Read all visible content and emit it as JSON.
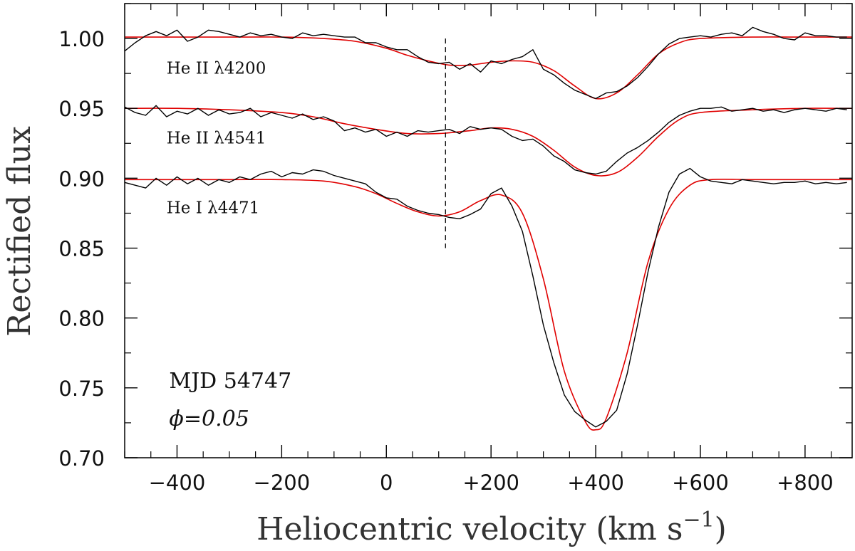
{
  "chart_data": {
    "type": "line",
    "xlabel": "Heliocentric velocity (km s",
    "xlabel_sup": "−1",
    "xlabel_close": ")",
    "ylabel": "Rectified flux",
    "xlim": [
      -500,
      890
    ],
    "ylim": [
      0.7,
      1.025
    ],
    "x_major_ticks": [
      -400,
      -200,
      0,
      200,
      400,
      600,
      800
    ],
    "x_tick_labels": [
      "−400",
      "−200",
      "0",
      "+200",
      "+400",
      "+600",
      "+800"
    ],
    "x_minor_step": 50,
    "y_major_ticks": [
      0.7,
      0.75,
      0.8,
      0.85,
      0.9,
      0.95,
      1.0
    ],
    "y_tick_labels": [
      "0.70",
      "0.75",
      "0.80",
      "0.85",
      "0.90",
      "0.95",
      "1.00"
    ],
    "y_minor_step": 0.025,
    "grid": false,
    "annotations": [
      {
        "text": "MJD 54747",
        "x": -415,
        "y": 0.755
      },
      {
        "text": "ϕ=0.05",
        "x": -415,
        "y": 0.728
      }
    ],
    "vline": {
      "x": 113,
      "y_from": 0.85,
      "y_to": 1.0,
      "style": "dashed"
    },
    "series": [
      {
        "label": "He II λ4200",
        "label_pos": {
          "x": -420,
          "y": 0.979
        },
        "observed_color": "#000000",
        "fit_color": "#e00000",
        "observed": {
          "x": [
            -500,
            -480,
            -460,
            -440,
            -420,
            -400,
            -380,
            -360,
            -340,
            -320,
            -300,
            -280,
            -260,
            -240,
            -220,
            -200,
            -180,
            -160,
            -140,
            -120,
            -100,
            -80,
            -60,
            -40,
            -20,
            0,
            20,
            40,
            60,
            80,
            100,
            120,
            140,
            160,
            180,
            200,
            220,
            240,
            260,
            280,
            300,
            320,
            340,
            360,
            380,
            400,
            420,
            440,
            460,
            480,
            500,
            520,
            540,
            560,
            580,
            600,
            620,
            640,
            660,
            680,
            700,
            720,
            740,
            760,
            780,
            800,
            820,
            840,
            860,
            880
          ],
          "y": [
            0.991,
            0.997,
            1.002,
            1.005,
            1.002,
            1.006,
            0.998,
            1.001,
            1.006,
            1.005,
            1.003,
            1.001,
            1.004,
            1.002,
            1.003,
            1.001,
            1.0,
            1.004,
            1.002,
            1.003,
            1.002,
            1.001,
            1.001,
            0.997,
            0.997,
            0.994,
            0.992,
            0.992,
            0.987,
            0.983,
            0.982,
            0.983,
            0.978,
            0.982,
            0.976,
            0.984,
            0.982,
            0.985,
            0.987,
            0.992,
            0.978,
            0.974,
            0.968,
            0.963,
            0.96,
            0.957,
            0.961,
            0.962,
            0.966,
            0.972,
            0.98,
            0.989,
            0.996,
            1.0,
            1.001,
            1.002,
            1.001,
            1.003,
            1.004,
            1.002,
            1.008,
            1.005,
            1.003,
            1.0,
            0.999,
            1.004,
            1.002,
            1.002,
            1.001,
            1.001
          ]
        },
        "fit": {
          "x": [
            -500,
            -400,
            -300,
            -200,
            -120,
            -60,
            0,
            40,
            80,
            120,
            160,
            200,
            240,
            280,
            320,
            360,
            400,
            440,
            480,
            520,
            560,
            600,
            700,
            800,
            890
          ],
          "y": [
            1.001,
            1.001,
            1.001,
            1.001,
            1.0,
            0.998,
            0.993,
            0.988,
            0.984,
            0.981,
            0.981,
            0.983,
            0.984,
            0.983,
            0.977,
            0.966,
            0.957,
            0.961,
            0.974,
            0.989,
            0.997,
            1.0,
            1.001,
            1.001,
            1.001
          ]
        }
      },
      {
        "label": "He II λ4541",
        "label_pos": {
          "x": -420,
          "y": 0.929
        },
        "observed_color": "#000000",
        "fit_color": "#e00000",
        "observed": {
          "x": [
            -500,
            -480,
            -460,
            -440,
            -420,
            -400,
            -380,
            -360,
            -340,
            -320,
            -300,
            -280,
            -260,
            -240,
            -220,
            -200,
            -180,
            -160,
            -140,
            -120,
            -100,
            -80,
            -60,
            -40,
            -20,
            0,
            20,
            40,
            60,
            80,
            100,
            120,
            140,
            160,
            180,
            200,
            220,
            240,
            260,
            280,
            300,
            320,
            340,
            360,
            380,
            400,
            420,
            440,
            460,
            480,
            500,
            520,
            540,
            560,
            580,
            600,
            620,
            640,
            660,
            680,
            700,
            720,
            740,
            760,
            780,
            800,
            820,
            840,
            860,
            880
          ],
          "y": [
            0.951,
            0.947,
            0.945,
            0.952,
            0.944,
            0.948,
            0.946,
            0.95,
            0.945,
            0.949,
            0.946,
            0.947,
            0.95,
            0.944,
            0.947,
            0.945,
            0.943,
            0.946,
            0.942,
            0.944,
            0.941,
            0.934,
            0.936,
            0.933,
            0.935,
            0.93,
            0.933,
            0.93,
            0.934,
            0.933,
            0.934,
            0.935,
            0.932,
            0.937,
            0.935,
            0.936,
            0.935,
            0.93,
            0.927,
            0.928,
            0.923,
            0.916,
            0.912,
            0.906,
            0.904,
            0.903,
            0.905,
            0.912,
            0.918,
            0.922,
            0.927,
            0.933,
            0.94,
            0.945,
            0.948,
            0.95,
            0.95,
            0.951,
            0.948,
            0.949,
            0.95,
            0.948,
            0.949,
            0.947,
            0.949,
            0.95,
            0.949,
            0.948,
            0.95,
            0.949
          ]
        },
        "fit": {
          "x": [
            -500,
            -400,
            -300,
            -200,
            -140,
            -80,
            -20,
            40,
            100,
            160,
            200,
            240,
            280,
            320,
            360,
            400,
            440,
            480,
            520,
            560,
            600,
            700,
            800,
            890
          ],
          "y": [
            0.95,
            0.95,
            0.949,
            0.947,
            0.944,
            0.939,
            0.935,
            0.932,
            0.932,
            0.934,
            0.936,
            0.935,
            0.93,
            0.92,
            0.908,
            0.902,
            0.904,
            0.915,
            0.93,
            0.942,
            0.947,
            0.949,
            0.95,
            0.95
          ]
        }
      },
      {
        "label": "He I λ4471",
        "label_pos": {
          "x": -420,
          "y": 0.879
        },
        "observed_color": "#000000",
        "fit_color": "#e00000",
        "observed": {
          "x": [
            -500,
            -480,
            -460,
            -440,
            -420,
            -400,
            -380,
            -360,
            -340,
            -320,
            -300,
            -280,
            -260,
            -240,
            -220,
            -200,
            -180,
            -160,
            -140,
            -120,
            -100,
            -80,
            -60,
            -40,
            -20,
            0,
            20,
            40,
            60,
            80,
            100,
            120,
            140,
            160,
            180,
            200,
            220,
            240,
            260,
            280,
            300,
            320,
            340,
            360,
            380,
            400,
            420,
            440,
            460,
            480,
            500,
            520,
            540,
            560,
            580,
            600,
            620,
            640,
            660,
            680,
            700,
            720,
            740,
            760,
            780,
            800,
            820,
            840,
            860,
            880
          ],
          "y": [
            0.897,
            0.895,
            0.893,
            0.9,
            0.895,
            0.901,
            0.896,
            0.9,
            0.895,
            0.899,
            0.897,
            0.901,
            0.899,
            0.903,
            0.905,
            0.901,
            0.904,
            0.903,
            0.906,
            0.905,
            0.902,
            0.9,
            0.898,
            0.896,
            0.89,
            0.886,
            0.885,
            0.88,
            0.877,
            0.875,
            0.874,
            0.872,
            0.871,
            0.874,
            0.878,
            0.889,
            0.893,
            0.88,
            0.862,
            0.83,
            0.795,
            0.768,
            0.745,
            0.733,
            0.727,
            0.722,
            0.726,
            0.734,
            0.76,
            0.795,
            0.833,
            0.865,
            0.89,
            0.903,
            0.907,
            0.901,
            0.898,
            0.897,
            0.896,
            0.899,
            0.898,
            0.897,
            0.896,
            0.897,
            0.897,
            0.898,
            0.896,
            0.897,
            0.896,
            0.897
          ]
        },
        "fit": {
          "x": [
            -500,
            -400,
            -300,
            -200,
            -120,
            -60,
            -20,
            20,
            60,
            100,
            140,
            180,
            220,
            260,
            300,
            340,
            380,
            400,
            420,
            460,
            500,
            540,
            580,
            620,
            700,
            800,
            890
          ],
          "y": [
            0.899,
            0.899,
            0.899,
            0.899,
            0.898,
            0.894,
            0.889,
            0.882,
            0.876,
            0.873,
            0.876,
            0.884,
            0.888,
            0.875,
            0.828,
            0.762,
            0.726,
            0.72,
            0.728,
            0.775,
            0.84,
            0.878,
            0.895,
            0.899,
            0.899,
            0.899,
            0.899
          ]
        }
      }
    ]
  }
}
